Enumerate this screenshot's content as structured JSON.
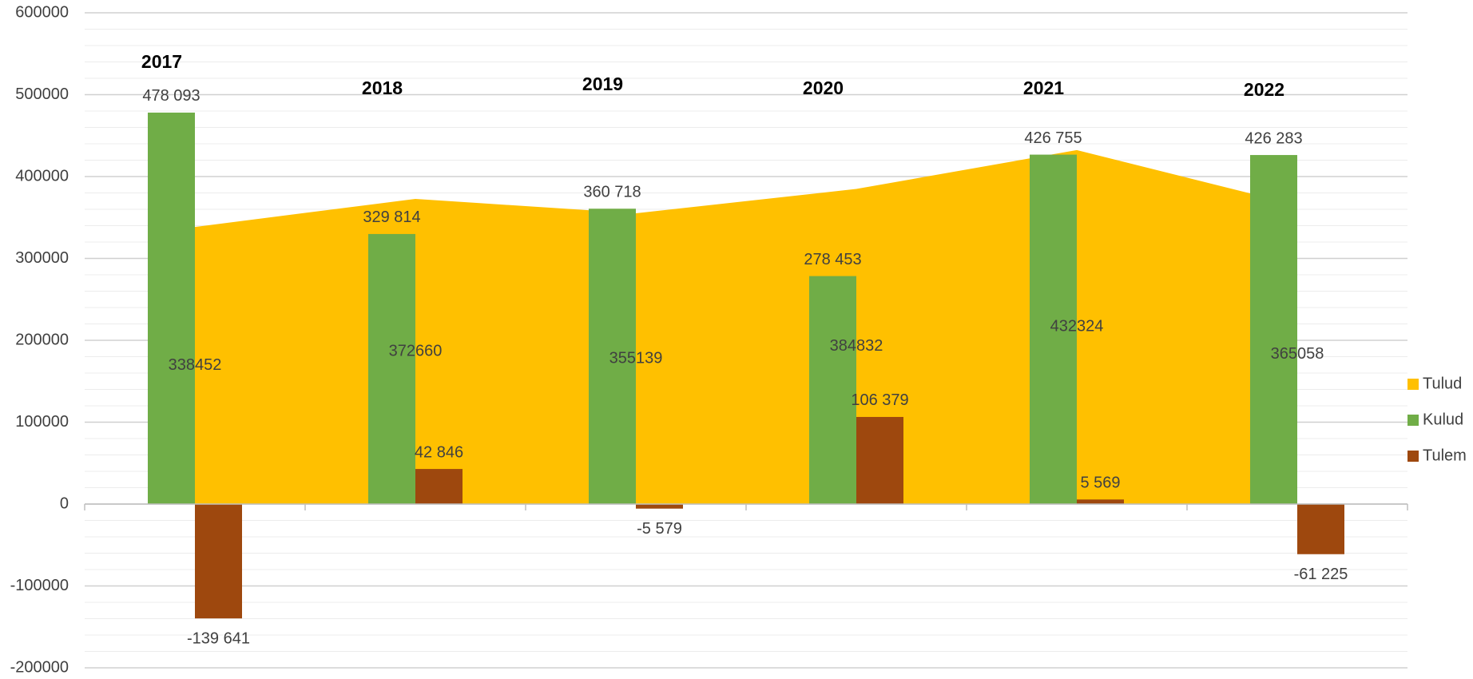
{
  "chart_data": {
    "type": "combo",
    "categories": [
      "2017",
      "2018",
      "2019",
      "2020",
      "2021",
      "2022"
    ],
    "series": [
      {
        "name": "Tulud",
        "kind": "area",
        "color": "#ffc000",
        "values": [
          338452,
          372660,
          355139,
          384832,
          432324,
          365058
        ]
      },
      {
        "name": "Kulud",
        "kind": "bar",
        "color": "#70ad47",
        "values": [
          478093,
          329814,
          360718,
          278453,
          426755,
          426283
        ],
        "value_labels": [
          "478 093",
          "329 814",
          "360 718",
          "278 453",
          "426 755",
          "426 283"
        ]
      },
      {
        "name": "Tulem",
        "kind": "bar",
        "color": "#9e480e",
        "values": [
          -139641,
          42846,
          -5579,
          106379,
          5569,
          -61225
        ],
        "value_labels": [
          "-139 641",
          "42 846",
          "-5 579",
          "106 379",
          "5 569",
          "-61 225"
        ]
      }
    ],
    "ylim": [
      -200000,
      600000
    ],
    "yticks": [
      -200000,
      -100000,
      0,
      100000,
      200000,
      300000,
      400000,
      500000,
      600000
    ],
    "yminorticks": [
      -180000,
      -160000,
      -140000,
      -120000,
      -80000,
      -60000,
      -40000,
      -20000,
      20000,
      40000,
      60000,
      80000,
      120000,
      140000,
      160000,
      180000,
      220000,
      240000,
      260000,
      280000,
      320000,
      340000,
      360000,
      380000,
      420000,
      440000,
      460000,
      480000,
      520000,
      540000,
      560000,
      580000
    ],
    "grid": true,
    "legend": "right"
  }
}
